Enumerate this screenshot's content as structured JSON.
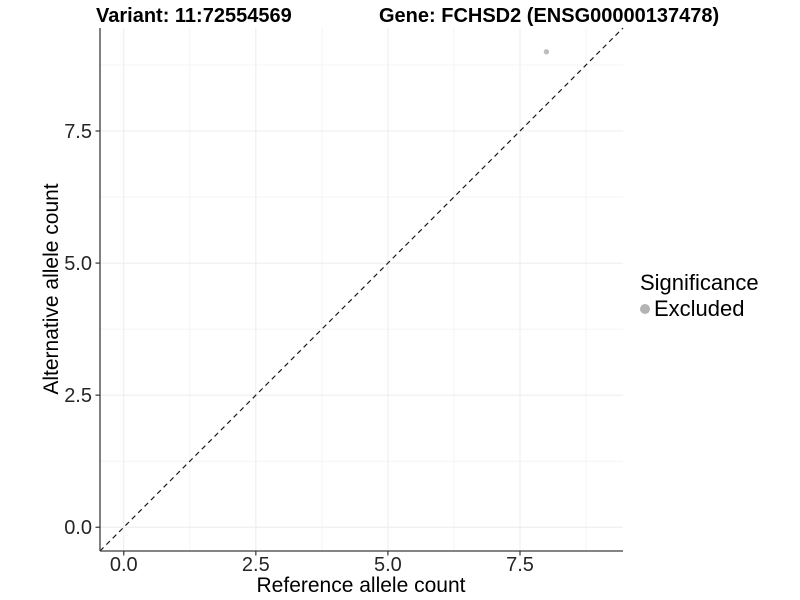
{
  "titles": {
    "left": "Variant: 11:72554569",
    "right": "Gene: FCHSD2 (ENSG00000137478)"
  },
  "chart_data": {
    "type": "scatter",
    "title_left": "Variant: 11:72554569",
    "title_right": "Gene: FCHSD2 (ENSG00000137478)",
    "xlabel": "Reference allele count",
    "ylabel": "Alternative allele count",
    "xlim": [
      -0.45,
      9.45
    ],
    "ylim": [
      -0.45,
      9.45
    ],
    "x_tick_values": [
      0,
      2.5,
      5,
      7.5
    ],
    "y_tick_values": [
      0,
      2.5,
      5,
      7.5
    ],
    "x_tick_labels": [
      "0.0",
      "2.5",
      "5.0",
      "7.5"
    ],
    "y_tick_labels": [
      "0.0",
      "2.5",
      "5.0",
      "7.5"
    ],
    "minor_tick_values": [
      1.25,
      3.75,
      6.25,
      8.75
    ],
    "grid": true,
    "series": [
      {
        "name": "Excluded",
        "color": "#bdbdbd",
        "points": [
          {
            "x": 8,
            "y": 9
          }
        ]
      }
    ],
    "identity_line": {
      "style": "dashed",
      "color": "#1a1a1a",
      "from": [
        -0.45,
        -0.45
      ],
      "to": [
        9.45,
        9.45
      ]
    },
    "legend": {
      "title": "Significance",
      "position": "right",
      "items": [
        {
          "label": "Excluded",
          "color": "#b3b3b3"
        }
      ]
    }
  },
  "colors": {
    "background": "#ffffff",
    "axis_line": "#3c3c3c",
    "tick_mark": "#333333",
    "grid_major": "#ececec",
    "grid_minor": "#f4f4f4",
    "tick_text": "#262626",
    "point": "#bdbdbd",
    "legend_dot": "#b3b3b3"
  }
}
